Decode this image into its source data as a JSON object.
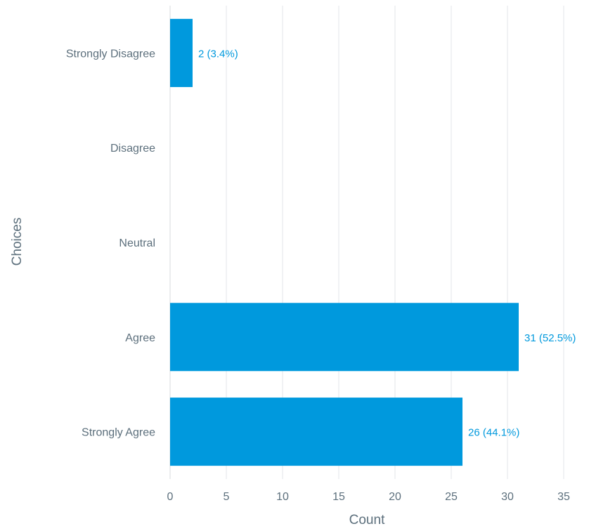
{
  "chart_data": {
    "type": "bar",
    "orientation": "horizontal",
    "categories": [
      "Strongly Disagree",
      "Disagree",
      "Neutral",
      "Agree",
      "Strongly Agree"
    ],
    "values": [
      2,
      0,
      0,
      31,
      26
    ],
    "data_labels": [
      "2 (3.4%)",
      "",
      "",
      "31 (52.5%)",
      "26 (44.1%)"
    ],
    "xlabel": "Count",
    "ylabel": "Choices",
    "xlim": [
      0,
      35
    ],
    "xticks": [
      0,
      5,
      10,
      15,
      20,
      25,
      30,
      35
    ],
    "xtick_labels": [
      "0",
      "5",
      "10",
      "15",
      "20",
      "25",
      "30",
      "35"
    ],
    "grid": true,
    "bar_color": "#0099dd",
    "label_color": "#0099dd"
  }
}
